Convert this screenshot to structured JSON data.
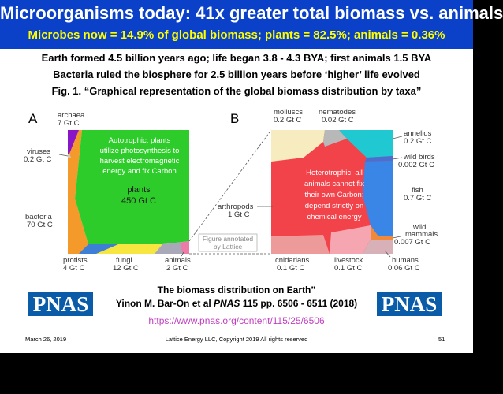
{
  "slide": {
    "title": "Microorganisms today: 41x greater total biomass vs. animals",
    "subtitle": "Microbes now = 14.9% of global biomass; plants = 82.5%; animals = 0.36%",
    "line1": "Earth formed 4.5 billion years ago; life began 3.8 - 4.3 BYA; first animals 1.5 BYA",
    "line2": "Bacteria ruled the biosphere for 2.5 billion years before ‘higher’ life evolved",
    "fig_caption": "Fig. 1. “Graphical representation of the global biomass distribution by taxa”"
  },
  "figure": {
    "panel_a": {
      "letter": "A",
      "archaea": [
        "archaea",
        "7 Gt C"
      ],
      "viruses": [
        "viruses",
        "0.2 Gt C"
      ],
      "bacteria": [
        "bacteria",
        "70 Gt C"
      ],
      "protists": [
        "protists",
        "4 Gt C"
      ],
      "fungi": [
        "fungi",
        "12 Gt C"
      ],
      "animals": [
        "animals",
        "2 Gt C"
      ],
      "plants": [
        "plants",
        "450 Gt C"
      ],
      "autotrophic": [
        "Autotrophic: plants",
        "utilize photosynthesis to",
        "harvest electromagnetic",
        "energy and fix Carbon"
      ],
      "annotated": [
        "Figure annotated",
        "by Lattice"
      ]
    },
    "panel_b": {
      "letter": "B",
      "molluscs": [
        "molluscs",
        "0.2 Gt C"
      ],
      "nematodes": [
        "nematodes",
        "0.02 Gt C"
      ],
      "annelids": [
        "annelids",
        "0.2 Gt C"
      ],
      "wild_birds": [
        "wild birds",
        "0.002 Gt C"
      ],
      "fish": [
        "fish",
        "0.7 Gt C"
      ],
      "wild_mammals": [
        "wild",
        "mammals",
        "0.007 Gt C"
      ],
      "arthropods": [
        "arthropods",
        "1 Gt C"
      ],
      "cnidarians": [
        "cnidarians",
        "0.1 Gt C"
      ],
      "livestock": [
        "livestock",
        "0.1 Gt C"
      ],
      "humans": [
        "humans",
        "0.06 Gt C"
      ],
      "heterotrophic": [
        "Heterotrophic: all",
        "animals cannot fix",
        "their own Carbon;",
        "depend strictly on",
        "chemical energy"
      ]
    }
  },
  "citation": {
    "line1": "The biomass distribution on Earth”",
    "line2_pre": "Yinon M. Bar-On et al ",
    "line2_journal": "PNAS",
    "line2_post": " 115 pp. 6506 - 6511 (2018)",
    "link": "https://www.pnas.org/content/115/25/6506",
    "logo_left": "PNAS",
    "logo_right": "PNAS"
  },
  "footer": {
    "date": "March 26,  2019",
    "company": "Lattice Energy LLC, Copyright 2019   All rights reserved",
    "page": "51"
  },
  "colors": {
    "header_bg": "#0a41c8",
    "title": "#ffffff",
    "subtitle": "#ffff00",
    "plants": "#2ecc2a",
    "bacteria": "#f39a2b",
    "archaea": "#8a14c8",
    "fungi": "#f7e640",
    "protists": "#3d7fd6",
    "arthropods": "#f2434a",
    "fish": "#3a86e6",
    "annelids": "#20c8d2",
    "molluscs": "#f7ecc0",
    "link": "#c03fc0",
    "pnas_logo": "#0a5ca8"
  }
}
